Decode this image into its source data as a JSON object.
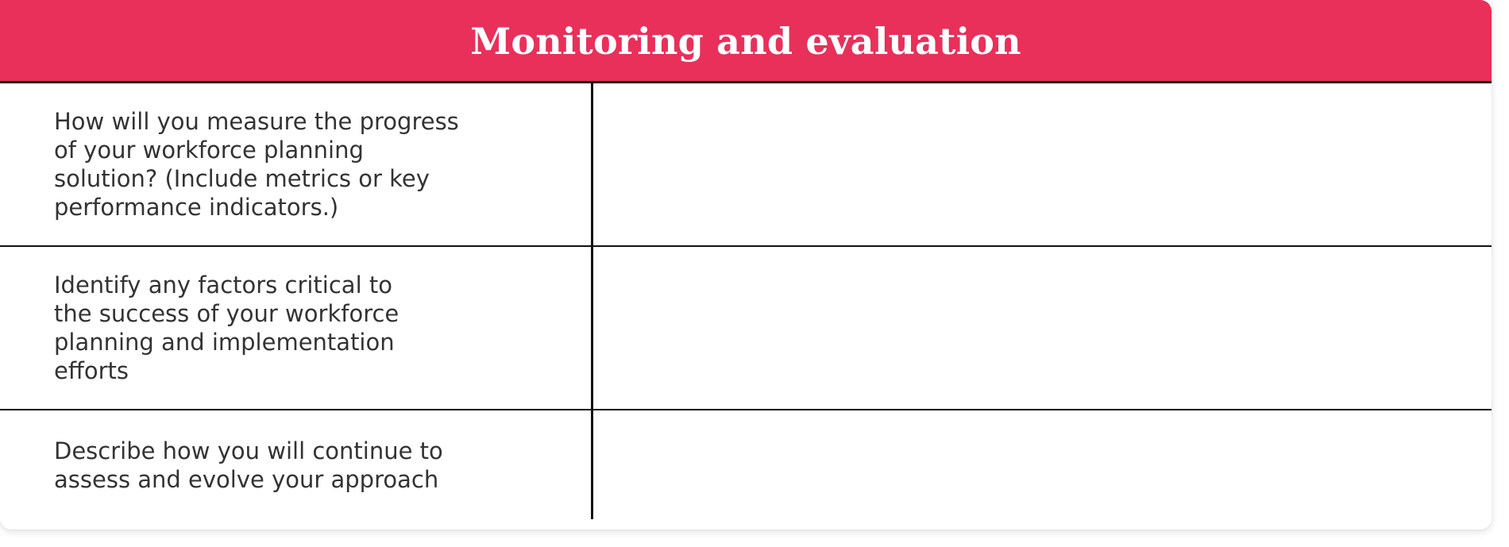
{
  "header": {
    "title": "Monitoring and evaluation",
    "background_color": "#e8305a",
    "text_color": "#ffffff"
  },
  "rows": [
    {
      "prompt": "How will you measure the progress\nof your workforce planning\nsolution? (Include metrics or key\nperformance indicators.)",
      "answer": ""
    },
    {
      "prompt": "Identify any factors critical to\nthe success of your workforce\nplanning and implementation\nefforts",
      "answer": ""
    },
    {
      "prompt": "Describe how you will continue to\nassess and evolve your approach",
      "answer": ""
    }
  ]
}
